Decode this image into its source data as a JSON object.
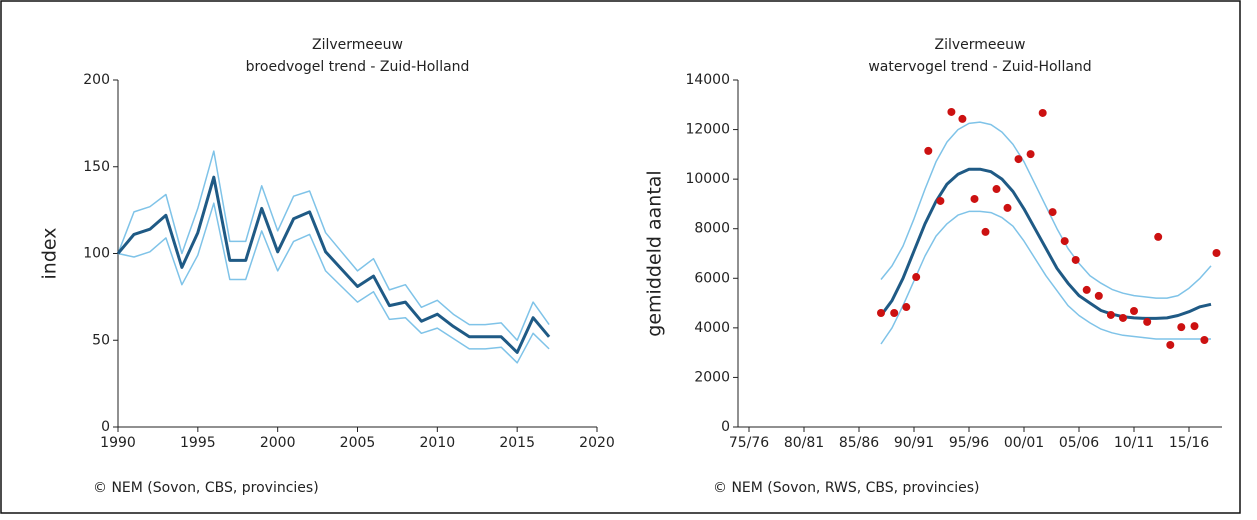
{
  "chart_data": [
    {
      "type": "line",
      "title": "Zilvermeeuw",
      "subtitle": "broedvogel trend - Zuid-Holland",
      "y_label": "index",
      "source": "© NEM (Sovon, CBS, provincies)",
      "x": [
        1990,
        1991,
        1992,
        1993,
        1994,
        1995,
        1996,
        1997,
        1998,
        1999,
        2000,
        2001,
        2002,
        2003,
        2004,
        2005,
        2006,
        2007,
        2008,
        2009,
        2010,
        2011,
        2012,
        2013,
        2014,
        2015,
        2016,
        2017
      ],
      "xlim": [
        1990,
        2020
      ],
      "xticks": [
        1990,
        1995,
        2000,
        2005,
        2010,
        2015,
        2020
      ],
      "ylim": [
        0,
        200
      ],
      "yticks": [
        0,
        50,
        100,
        150,
        200
      ],
      "series": [
        {
          "color": "#7fc3e8",
          "width": 1.5,
          "values": [
            100,
            124,
            127,
            134,
            100,
            126,
            159,
            107,
            107,
            139,
            113,
            133,
            136,
            112,
            101,
            90,
            97,
            79,
            82,
            69,
            73,
            65,
            59,
            59,
            60,
            50,
            72,
            59
          ]
        },
        {
          "color": "#7fc3e8",
          "width": 1.5,
          "values": [
            100,
            98,
            101,
            109,
            82,
            99,
            129,
            85,
            85,
            113,
            90,
            107,
            111,
            90,
            81,
            72,
            78,
            62,
            63,
            54,
            57,
            51,
            45,
            45,
            46,
            37,
            54,
            45
          ]
        },
        {
          "color": "#1f5a85",
          "width": 3,
          "values": [
            100,
            111,
            114,
            122,
            92,
            112,
            144,
            96,
            96,
            126,
            101,
            120,
            124,
            101,
            91,
            81,
            87,
            70,
            72,
            61,
            65,
            58,
            52,
            52,
            52,
            43,
            63,
            52
          ]
        }
      ]
    },
    {
      "type": "line",
      "title": "Zilvermeeuw",
      "subtitle": "watervogel trend - Zuid-Holland",
      "y_label": "gemiddeld aantal",
      "source": "© NEM (Sovon, RWS, CBS, provincies)",
      "x": [
        1987,
        1988,
        1989,
        1990,
        1991,
        1992,
        1993,
        1994,
        1995,
        1996,
        1997,
        1998,
        1999,
        2000,
        2001,
        2002,
        2003,
        2004,
        2005,
        2006,
        2007,
        2008,
        2009,
        2010,
        2011,
        2012,
        2013,
        2014,
        2015,
        2016,
        2017
      ],
      "xlim": [
        1974,
        2018
      ],
      "xticks": [
        {
          "value": 1975,
          "label": "75/76"
        },
        {
          "value": 1980,
          "label": "80/81"
        },
        {
          "value": 1985,
          "label": "85/86"
        },
        {
          "value": 1990,
          "label": "90/91"
        },
        {
          "value": 1995,
          "label": "95/96"
        },
        {
          "value": 2000,
          "label": "00/01"
        },
        {
          "value": 2005,
          "label": "05/06"
        },
        {
          "value": 2010,
          "label": "10/11"
        },
        {
          "value": 2015,
          "label": "15/16"
        }
      ],
      "ylim": [
        0,
        14000
      ],
      "yticks": [
        0,
        2000,
        4000,
        6000,
        8000,
        10000,
        12000,
        14000
      ],
      "series": [
        {
          "color": "#7fc3e8",
          "width": 1.5,
          "values": [
            5950,
            6500,
            7300,
            8400,
            9600,
            10700,
            11500,
            12000,
            12250,
            12300,
            12200,
            11900,
            11400,
            10700,
            9800,
            8900,
            8000,
            7200,
            6600,
            6100,
            5800,
            5550,
            5400,
            5300,
            5250,
            5200,
            5200,
            5300,
            5600,
            6000,
            6500
          ]
        },
        {
          "color": "#7fc3e8",
          "width": 1.5,
          "values": [
            3350,
            4000,
            4900,
            5900,
            6900,
            7700,
            8200,
            8550,
            8700,
            8700,
            8650,
            8450,
            8100,
            7500,
            6800,
            6100,
            5500,
            4900,
            4500,
            4200,
            3950,
            3800,
            3700,
            3650,
            3600,
            3550,
            3550,
            3550,
            3550,
            3550,
            3550
          ]
        },
        {
          "color": "#1f5a85",
          "width": 3,
          "values": [
            4500,
            5100,
            6000,
            7100,
            8200,
            9100,
            9800,
            10200,
            10400,
            10400,
            10300,
            10000,
            9500,
            8800,
            8000,
            7200,
            6400,
            5800,
            5300,
            5000,
            4700,
            4550,
            4450,
            4400,
            4380,
            4380,
            4400,
            4500,
            4650,
            4850,
            4950
          ]
        },
        {
          "type": "scatter",
          "color": "#cc1111",
          "x": [
            1987.0,
            1988.2,
            1989.3,
            1990.2,
            1991.3,
            1992.4,
            1993.4,
            1994.4,
            1995.5,
            1996.5,
            1997.5,
            1998.5,
            1999.5,
            2000.6,
            2001.7,
            2002.6,
            2003.7,
            2004.7,
            2005.7,
            2006.8,
            2007.9,
            2009.0,
            2010.0,
            2011.2,
            2012.2,
            2013.3,
            2014.3,
            2015.5,
            2016.4,
            2017.5
          ],
          "values": [
            4600,
            4600,
            4840,
            6050,
            11140,
            9120,
            12710,
            12430,
            9200,
            7870,
            9600,
            8840,
            10810,
            11010,
            12670,
            8670,
            7500,
            6740,
            5530,
            5290,
            4520,
            4400,
            4680,
            4240,
            7670,
            3310,
            4030,
            4070,
            3510,
            7020
          ]
        }
      ]
    }
  ]
}
